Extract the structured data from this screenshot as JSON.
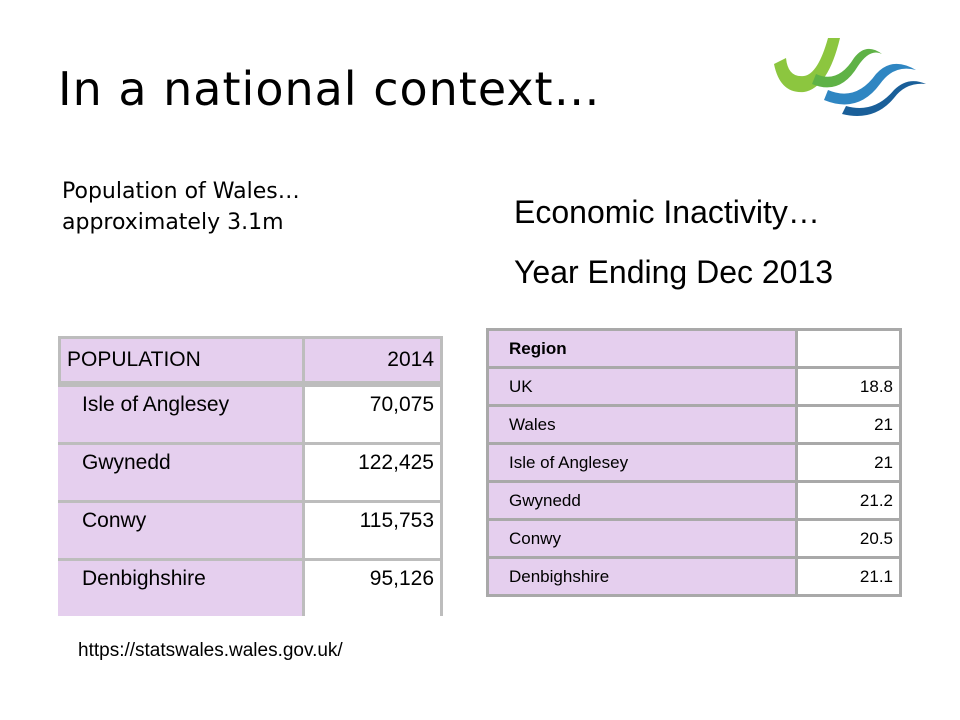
{
  "title": "In a national context…",
  "left": {
    "subtitle_line1": "Population of Wales…",
    "subtitle_line2": "approximately 3.1m"
  },
  "right": {
    "heading_line1": "Economic Inactivity…",
    "heading_line2": "Year Ending Dec 2013"
  },
  "population_table": {
    "header": [
      "POPULATION",
      "2014"
    ],
    "rows": [
      {
        "area": "Isle of Anglesey",
        "value": "70,075"
      },
      {
        "area": "Gwynedd",
        "value": "122,425"
      },
      {
        "area": "Conwy",
        "value": "115,753"
      },
      {
        "area": "Denbighshire",
        "value": "95,126"
      }
    ]
  },
  "inactivity_table": {
    "header": [
      "Region",
      ""
    ],
    "rows": [
      {
        "region": "UK",
        "value": "18.8"
      },
      {
        "region": "Wales",
        "value": "21"
      },
      {
        "region": "Isle of Anglesey",
        "value": "21"
      },
      {
        "region": "Gwynedd",
        "value": "21.2"
      },
      {
        "region": "Conwy",
        "value": "20.5"
      },
      {
        "region": "Denbighshire",
        "value": "21.1"
      }
    ]
  },
  "source_url": "https://statswales.wales.gov.uk/",
  "logo": {
    "icon": "wave-logo-icon",
    "green": "#7dc242",
    "blue": "#1f6fa8"
  }
}
